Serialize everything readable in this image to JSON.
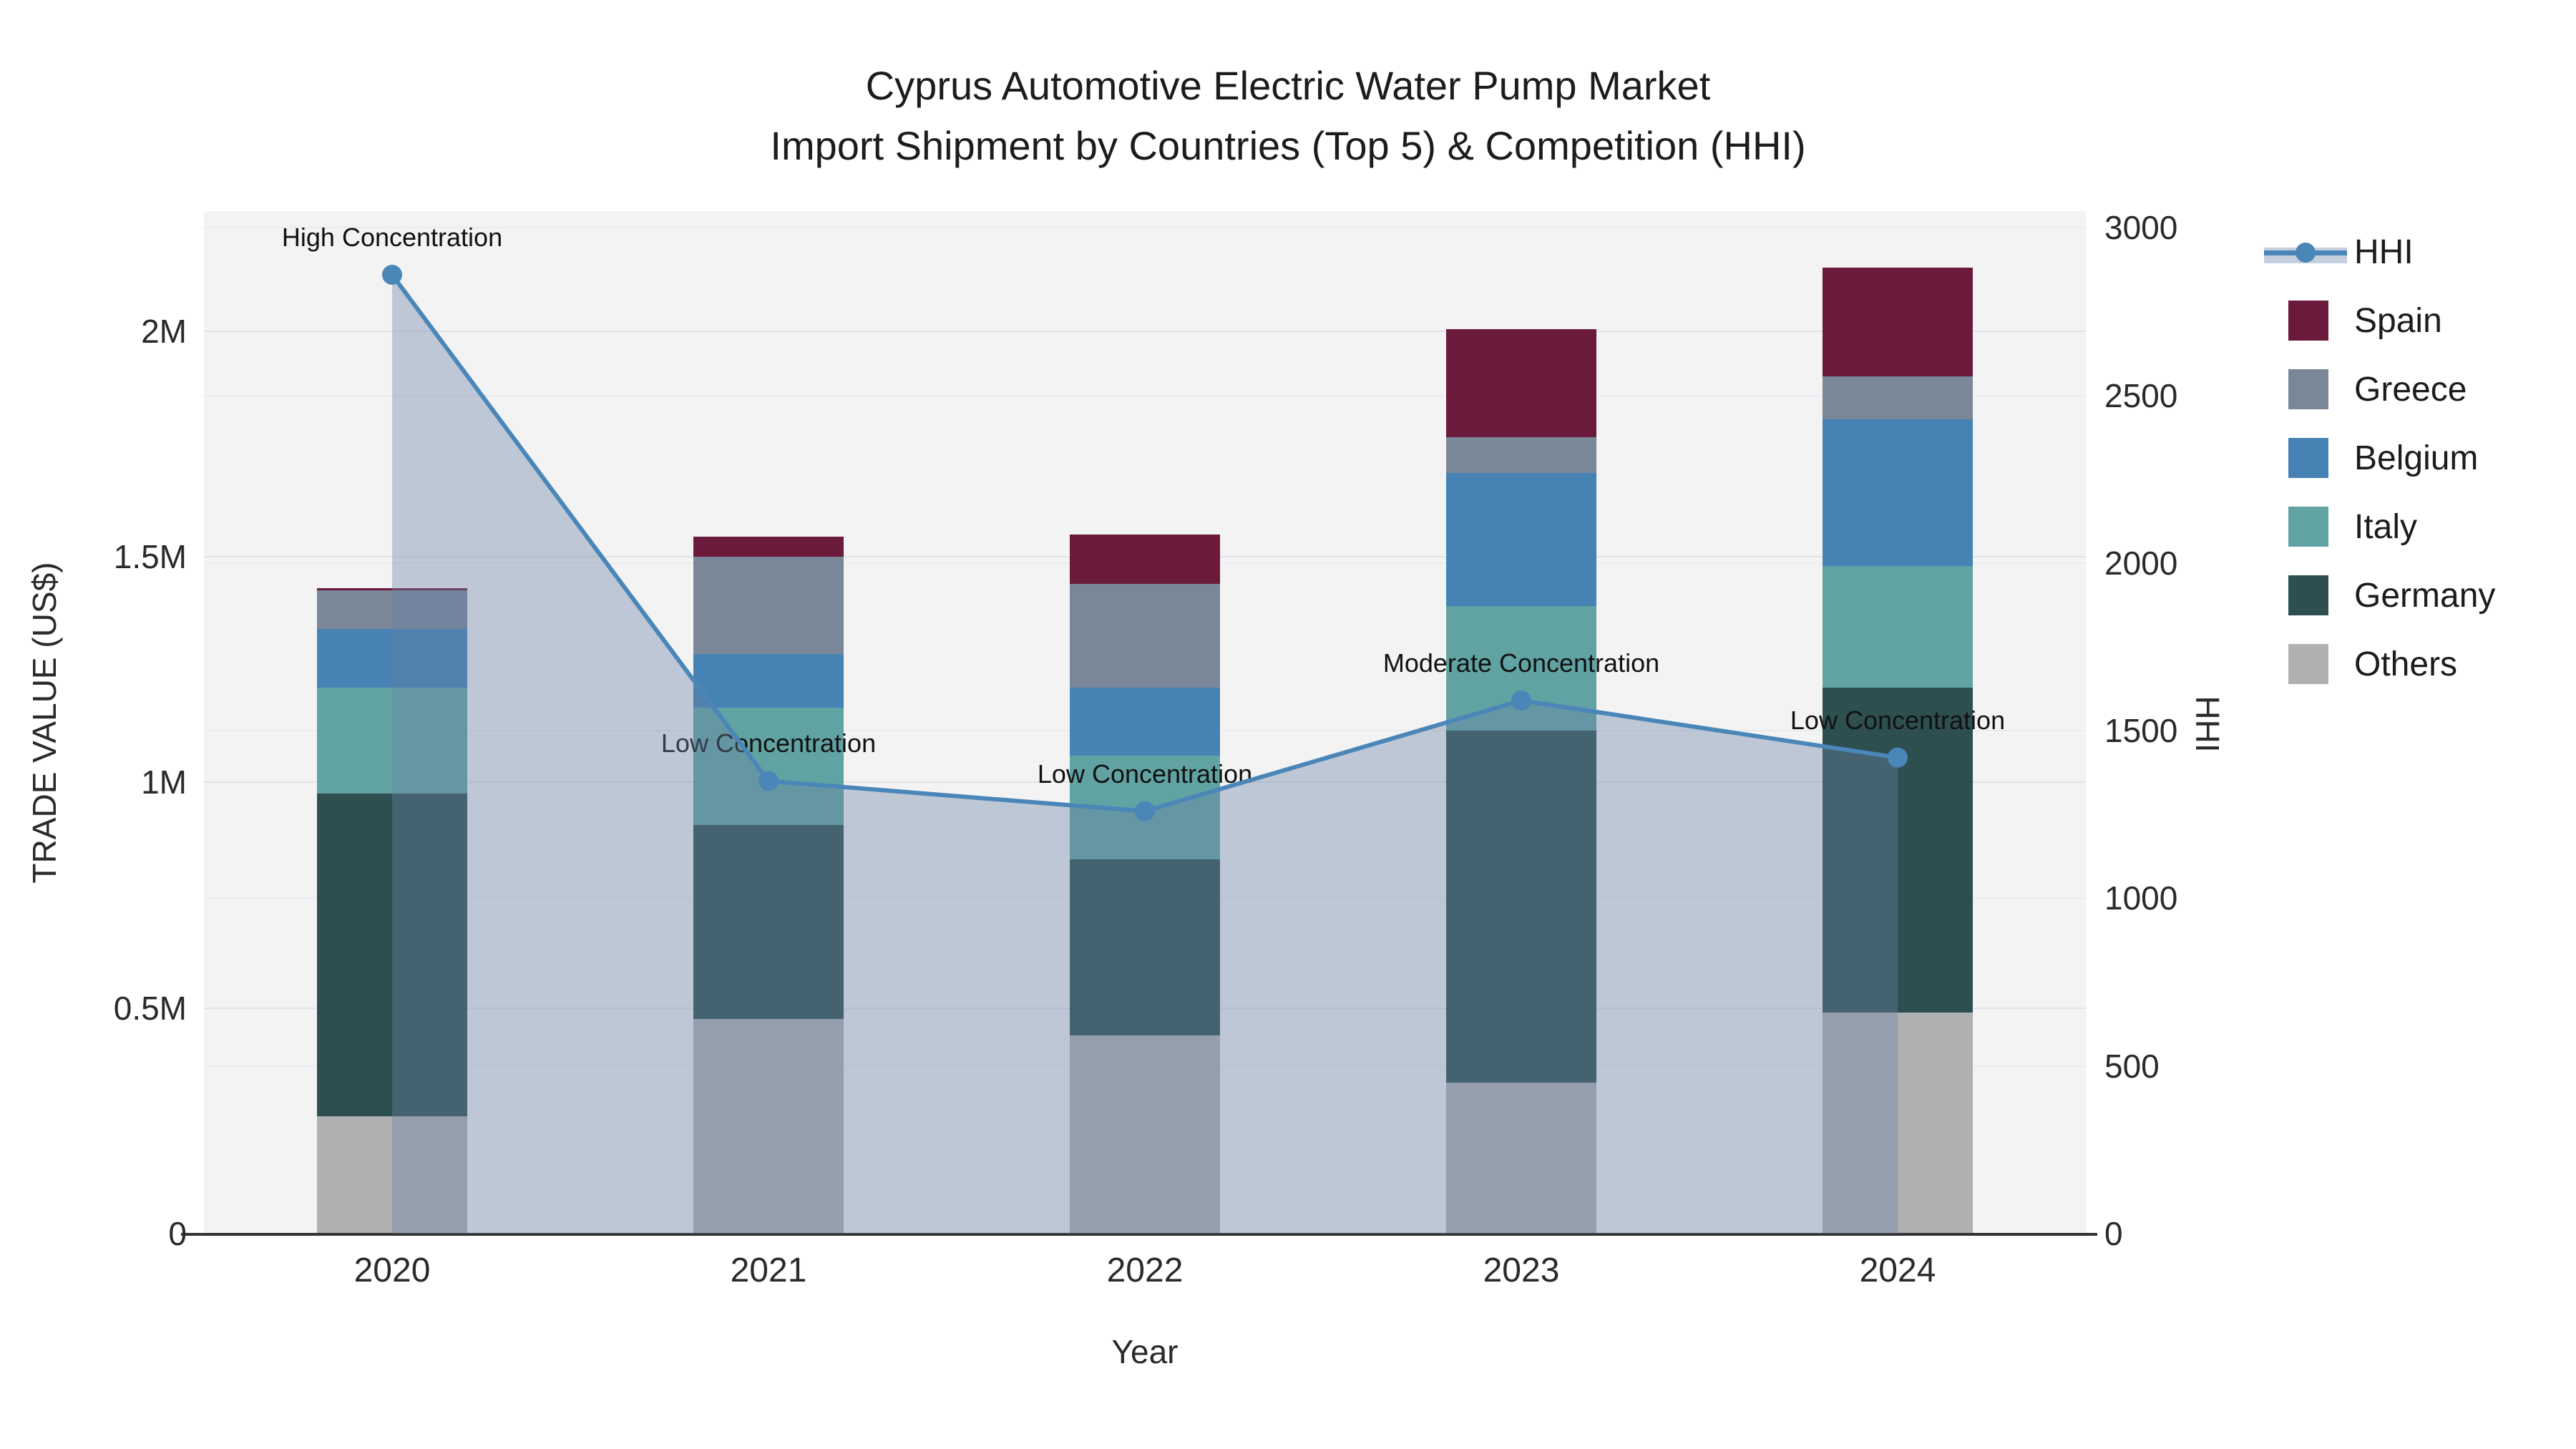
{
  "title": {
    "line1": "Cyprus Automotive Electric Water Pump Market",
    "line2": "Import Shipment by Countries (Top 5) & Competition (HHI)"
  },
  "colors": {
    "background": "#ffffff",
    "plot_bg": "#f3f3f4",
    "grid_left": "#e0e3e7",
    "grid_right": "#e9ebee",
    "axis_line": "#333333",
    "hhi_line": "#4a86b8",
    "hhi_fill": "rgba(105,130,165,0.38)",
    "spain": "#6c1a3c",
    "greece": "#7a8799",
    "belgium": "#4682b4",
    "italy": "#61a3a3",
    "germany": "#2e4f50",
    "others": "#b0b0b0"
  },
  "legend": {
    "items": [
      {
        "label": "HHI",
        "type": "line",
        "color": "#4a86b8"
      },
      {
        "label": "Spain",
        "type": "box",
        "color": "#6c1a3c"
      },
      {
        "label": "Greece",
        "type": "box",
        "color": "#7a8799"
      },
      {
        "label": "Belgium",
        "type": "box",
        "color": "#4682b4"
      },
      {
        "label": "Italy",
        "type": "box",
        "color": "#61a3a3"
      },
      {
        "label": "Germany",
        "type": "box",
        "color": "#2e4f50"
      },
      {
        "label": "Others",
        "type": "box",
        "color": "#b0b0b0"
      }
    ]
  },
  "chart_data": {
    "type": "combo_stacked_bar_line",
    "categories": [
      "2020",
      "2021",
      "2022",
      "2023",
      "2024"
    ],
    "bar_series": [
      {
        "name": "Spain",
        "color": "#6c1a3c",
        "values": [
          5000,
          45000,
          110000,
          240000,
          240000
        ]
      },
      {
        "name": "Greece",
        "color": "#7a8799",
        "values": [
          85000,
          215000,
          230000,
          80000,
          95000
        ]
      },
      {
        "name": "Belgium",
        "color": "#4682b4",
        "values": [
          130000,
          120000,
          150000,
          295000,
          325000
        ]
      },
      {
        "name": "Italy",
        "color": "#61a3a3",
        "values": [
          235000,
          260000,
          230000,
          275000,
          270000
        ]
      },
      {
        "name": "Germany",
        "color": "#2e4f50",
        "values": [
          715000,
          430000,
          390000,
          780000,
          720000
        ]
      },
      {
        "name": "Others",
        "color": "#b0b0b0",
        "values": [
          260000,
          475000,
          440000,
          335000,
          490000
        ]
      }
    ],
    "stack_order_bottom_to_top": [
      "Others",
      "Germany",
      "Italy",
      "Belgium",
      "Greece",
      "Spain"
    ],
    "bar_totals": [
      1430000,
      1545000,
      1550000,
      2005000,
      2140000
    ],
    "line_series": {
      "name": "HHI",
      "color": "#4a86b8",
      "yaxis": "right",
      "values": [
        2860,
        1350,
        1260,
        1590,
        1420
      ],
      "fill": "tozeroy"
    },
    "annotations": [
      {
        "x": "2020",
        "text": "High Concentration"
      },
      {
        "x": "2021",
        "text": "Low Concentration"
      },
      {
        "x": "2022",
        "text": "Low Concentration"
      },
      {
        "x": "2023",
        "text": "Moderate Concentration"
      },
      {
        "x": "2024",
        "text": "Low Concentration"
      }
    ],
    "xlabel": "Year",
    "ylabel_left": "TRADE VALUE (US$)",
    "ylabel_right": "HHI",
    "ylim_left": [
      0,
      2266000
    ],
    "ylim_right": [
      0,
      3050
    ],
    "yticks_left": [
      {
        "value": 0,
        "label": "0"
      },
      {
        "value": 500000,
        "label": "0.5M"
      },
      {
        "value": 1000000,
        "label": "1M"
      },
      {
        "value": 1500000,
        "label": "1.5M"
      },
      {
        "value": 2000000,
        "label": "2M"
      }
    ],
    "yticks_right": [
      {
        "value": 0,
        "label": "0"
      },
      {
        "value": 500,
        "label": "500"
      },
      {
        "value": 1000,
        "label": "1000"
      },
      {
        "value": 1500,
        "label": "1500"
      },
      {
        "value": 2000,
        "label": "2000"
      },
      {
        "value": 2500,
        "label": "2500"
      },
      {
        "value": 3000,
        "label": "3000"
      }
    ],
    "grid": true,
    "legend_position": "right"
  }
}
